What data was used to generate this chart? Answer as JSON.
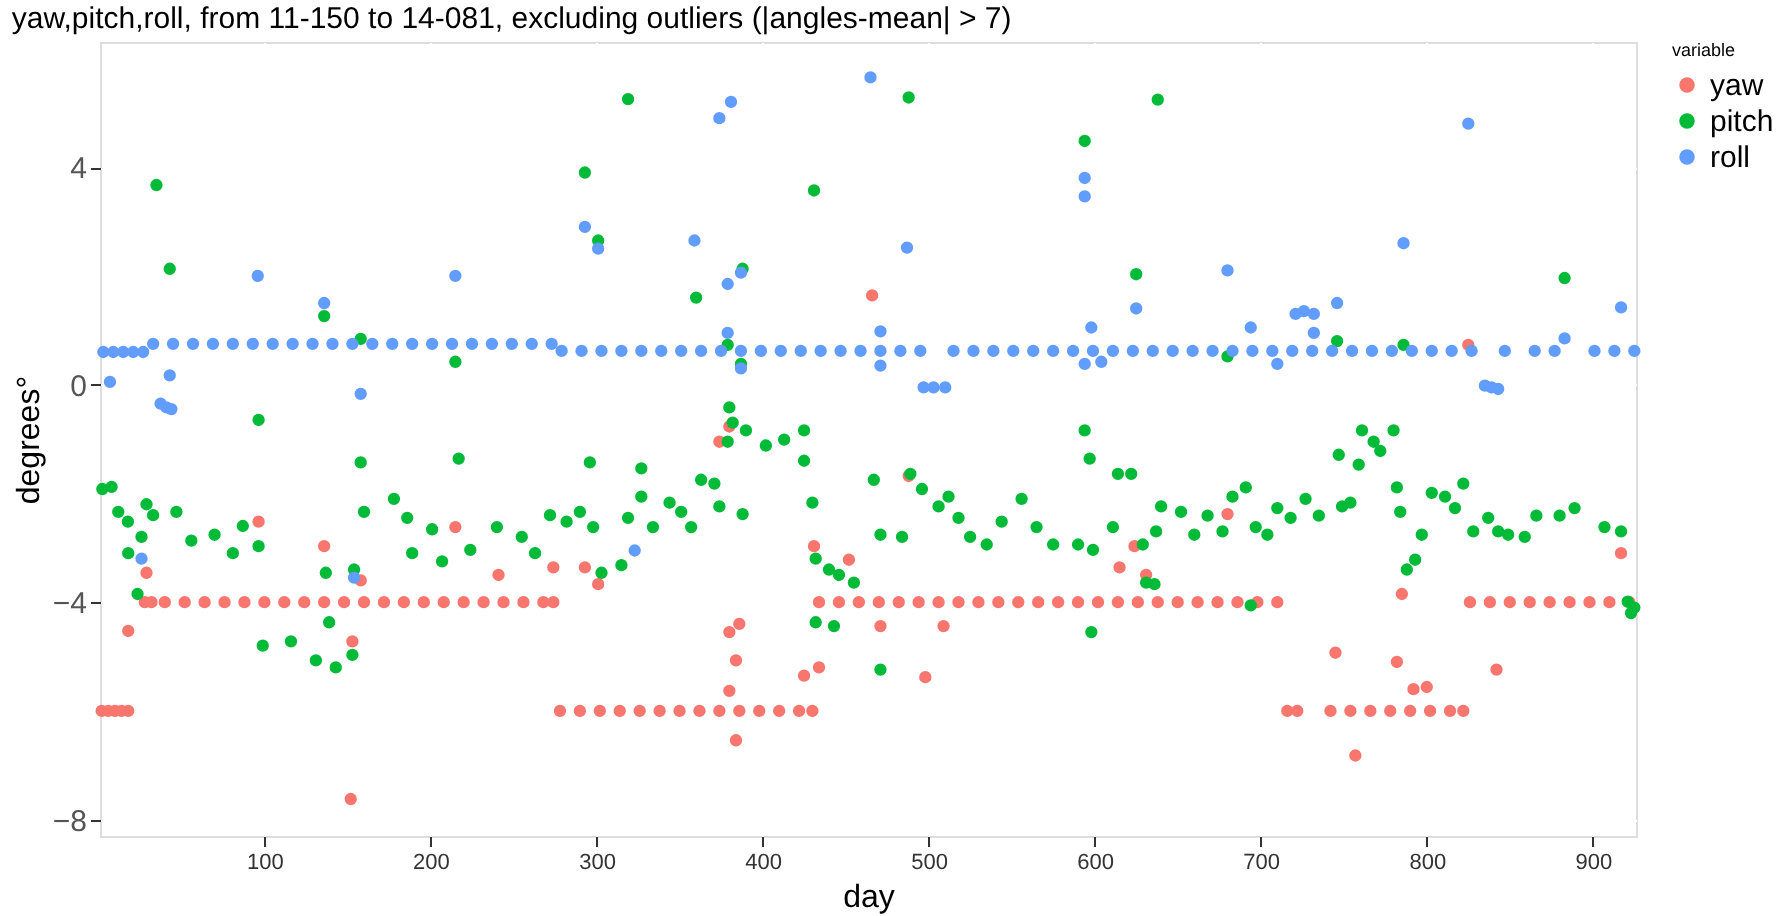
{
  "chart_data": {
    "type": "scatter",
    "title": "yaw,pitch,roll, from 11-150 to 14-081, excluding outliers (|angles-mean| > 7)",
    "xlabel": "day",
    "ylabel": "degrees°",
    "legend_title": "variable",
    "legend": "right",
    "grid": true,
    "marker": "circle",
    "xlim": [
      1,
      926
    ],
    "ylim": [
      -8.3,
      6.3
    ],
    "xticks": [
      100,
      200,
      300,
      400,
      500,
      600,
      700,
      800,
      900
    ],
    "yticks": [
      -8,
      -4,
      0,
      4
    ],
    "series": [
      {
        "name": "yaw",
        "color": "#f8766d",
        "x": [
          2,
          6,
          10,
          14,
          18,
          28,
          32,
          40,
          52,
          64,
          76,
          88,
          100,
          112,
          124,
          136,
          148,
          160,
          172,
          184,
          196,
          208,
          220,
          232,
          244,
          256,
          268,
          274,
          278,
          290,
          302,
          314,
          326,
          338,
          350,
          362,
          374,
          386,
          398,
          410,
          422,
          430,
          434,
          446,
          458,
          470,
          482,
          494,
          506,
          518,
          530,
          542,
          554,
          566,
          578,
          590,
          602,
          614,
          626,
          638,
          650,
          662,
          674,
          686,
          698,
          710,
          716,
          722,
          742,
          754,
          766,
          778,
          790,
          802,
          814,
          822,
          826,
          838,
          850,
          862,
          874,
          886,
          898,
          910,
          922,
          18,
          29,
          96.5,
          136,
          153,
          158,
          152,
          215,
          241,
          274,
          293,
          301,
          380,
          386,
          384,
          380,
          384,
          380,
          374,
          425,
          434,
          431,
          452,
          471,
          466,
          488,
          498,
          509,
          615,
          624,
          631,
          680,
          745,
          757,
          782,
          785,
          792,
          800,
          842,
          917,
          825
        ],
        "values": [
          -6,
          -6,
          -6,
          -6,
          -6,
          -4,
          -4,
          -4,
          -4,
          -4,
          -4,
          -4,
          -4,
          -4,
          -4,
          -4,
          -4,
          -4,
          -4,
          -4,
          -4,
          -4,
          -4,
          -4,
          -4,
          -4,
          -4,
          -4,
          -6,
          -6,
          -6,
          -6,
          -6,
          -6,
          -6,
          -6,
          -6,
          -6,
          -6,
          -6,
          -6,
          -6,
          -4,
          -4,
          -4,
          -4,
          -4,
          -4,
          -4,
          -4,
          -4,
          -4,
          -4,
          -4,
          -4,
          -4,
          -4,
          -4,
          -4,
          -4,
          -4,
          -4,
          -4,
          -4,
          -4,
          -4,
          -6,
          -6,
          -6,
          -6,
          -6,
          -6,
          -6,
          -6,
          -6,
          -6,
          -4,
          -4,
          -4,
          -4,
          -4,
          -4,
          -4,
          -4,
          -4,
          -4.53,
          -3.46,
          -2.52,
          -2.97,
          -4.72,
          -3.6,
          -7.62,
          -2.62,
          -3.5,
          -3.36,
          -3.36,
          -3.67,
          -4.55,
          -4.4,
          -5.07,
          -5.63,
          -6.54,
          -0.77,
          -1.05,
          -5.35,
          -5.2,
          -2.97,
          -3.22,
          -4.44,
          1.64,
          -1.68,
          -5.38,
          -4.44,
          -3.36,
          -2.97,
          -3.5,
          -2.38,
          -4.93,
          -6.82,
          -5.1,
          -3.85,
          -5.6,
          -5.56,
          -5.24,
          -3.1,
          0.73
        ]
      },
      {
        "name": "pitch",
        "color": "#00ba38",
        "x": [
          2.4,
          8,
          12,
          17.8,
          18,
          26,
          29,
          33,
          23.6,
          47,
          56,
          70,
          81,
          87,
          96.5,
          96.5,
          99,
          116,
          131,
          139,
          143,
          153,
          137,
          154,
          158,
          160,
          178,
          186,
          189,
          207,
          201,
          217,
          224,
          240,
          255,
          263,
          272,
          282,
          290,
          296,
          298,
          303,
          315,
          319,
          327,
          327,
          334,
          344,
          351,
          357,
          363,
          371,
          374,
          379,
          382,
          390,
          402,
          413,
          425,
          388,
          425,
          430,
          432,
          440,
          432,
          443,
          446,
          455,
          467,
          471,
          471,
          35,
          43,
          136,
          158,
          215,
          293,
          301,
          319,
          360,
          379,
          380,
          387,
          388,
          431,
          488,
          594,
          625,
          638,
          746,
          786,
          883,
          680,
          594,
          484,
          489,
          496,
          506,
          512,
          518,
          525,
          535,
          544,
          556,
          565,
          575,
          590,
          599,
          611,
          614,
          622,
          629,
          631,
          637,
          640,
          652,
          660,
          668,
          677,
          683,
          691,
          697,
          704,
          710,
          718,
          727,
          735,
          749,
          754,
          747,
          759,
          761,
          768,
          772,
          780,
          782,
          784,
          788,
          793,
          797,
          803,
          811,
          817,
          822,
          828,
          837,
          843,
          849,
          859,
          866,
          880,
          889,
          907,
          917,
          921,
          925,
          923,
          598,
          694,
          597,
          636
        ],
        "values": [
          -1.92,
          -1.88,
          -2.34,
          -2.52,
          -3.1,
          -2.8,
          -2.2,
          -2.4,
          -3.85,
          -2.34,
          -2.87,
          -2.76,
          -3.1,
          -2.6,
          -2.97,
          -0.65,
          -4.8,
          -4.72,
          -5.07,
          -4.37,
          -5.2,
          -4.97,
          -3.46,
          -3.4,
          -1.43,
          -2.34,
          -2.1,
          -2.45,
          -3.1,
          -3.25,
          -2.66,
          -1.36,
          -3.04,
          -2.62,
          -2.8,
          -3.1,
          -2.4,
          -2.52,
          -2.34,
          -1.43,
          -2.62,
          -3.46,
          -3.32,
          -2.45,
          -1.54,
          -2.06,
          -2.62,
          -2.17,
          -2.34,
          -2.62,
          -1.75,
          -1.82,
          -2.24,
          -1.05,
          -0.7,
          -0.84,
          -1.12,
          -1.01,
          -0.84,
          -2.38,
          -1.4,
          -2.17,
          -3.2,
          -3.4,
          -4.37,
          -4.44,
          -3.5,
          -3.64,
          -1.75,
          -2.76,
          -5.24,
          3.67,
          2.13,
          1.26,
          0.84,
          0.42,
          3.9,
          2.65,
          5.25,
          1.6,
          0.73,
          -0.42,
          0.38,
          2.13,
          3.57,
          5.28,
          4.48,
          2.03,
          5.24,
          0.8,
          0.73,
          1.96,
          0.52,
          -0.84,
          -2.8,
          -1.64,
          -1.92,
          -2.24,
          -2.06,
          -2.45,
          -2.8,
          -2.94,
          -2.52,
          -2.1,
          -2.62,
          -2.94,
          -2.94,
          -3.04,
          -2.62,
          -1.64,
          -1.64,
          -2.94,
          -3.64,
          -2.7,
          -2.24,
          -2.34,
          -2.76,
          -2.41,
          -2.7,
          -2.06,
          -1.89,
          -2.62,
          -2.76,
          -2.27,
          -2.45,
          -2.1,
          -2.41,
          -2.24,
          -2.17,
          -1.29,
          -1.47,
          -0.84,
          -1.05,
          -1.22,
          -0.84,
          -1.89,
          -2.34,
          -3.4,
          -3.22,
          -2.76,
          -1.99,
          -2.06,
          -2.27,
          -1.82,
          -2.7,
          -2.45,
          -2.7,
          -2.76,
          -2.8,
          -2.41,
          -2.41,
          -2.27,
          -2.62,
          -2.7,
          -3.99,
          -4.1,
          -4.2,
          -4.55,
          -4.06,
          -1.36,
          -3.67
        ]
      },
      {
        "name": "roll",
        "color": "#619cff",
        "x": [
          3,
          9,
          15,
          21,
          27,
          33,
          45,
          57,
          69,
          81,
          93,
          105,
          117,
          129,
          141,
          153,
          165,
          177,
          189,
          201,
          213,
          225,
          237,
          249,
          261,
          273,
          279,
          291,
          303,
          315,
          327,
          339,
          351,
          363,
          375,
          387,
          399,
          411,
          423,
          435,
          447,
          459,
          471,
          483,
          495,
          515,
          527,
          539,
          551,
          563,
          575,
          587,
          599,
          611,
          623,
          635,
          647,
          659,
          671,
          683,
          695,
          707,
          719,
          731,
          743,
          755,
          767,
          779,
          791,
          803,
          815,
          827,
          847,
          865,
          877,
          901,
          913,
          925,
          7,
          37.5,
          41,
          44,
          43,
          96,
          136,
          158,
          215,
          293,
          301,
          359,
          374,
          381,
          379,
          387,
          379,
          387,
          465,
          487,
          471,
          471,
          497,
          503,
          510,
          594,
          594,
          598,
          594,
          604,
          625,
          680,
          694,
          710,
          721,
          726,
          732,
          732,
          746,
          786,
          825,
          835,
          839,
          843,
          883,
          917,
          26,
          154,
          323
        ],
        "values": [
          0.6,
          0.6,
          0.6,
          0.6,
          0.6,
          0.75,
          0.75,
          0.75,
          0.75,
          0.75,
          0.75,
          0.75,
          0.75,
          0.75,
          0.75,
          0.75,
          0.75,
          0.75,
          0.75,
          0.75,
          0.75,
          0.75,
          0.75,
          0.75,
          0.75,
          0.75,
          0.62,
          0.62,
          0.62,
          0.62,
          0.62,
          0.62,
          0.62,
          0.62,
          0.62,
          0.62,
          0.62,
          0.62,
          0.62,
          0.62,
          0.62,
          0.62,
          0.62,
          0.62,
          0.62,
          0.62,
          0.62,
          0.62,
          0.62,
          0.62,
          0.62,
          0.62,
          0.62,
          0.62,
          0.62,
          0.62,
          0.62,
          0.62,
          0.62,
          0.62,
          0.62,
          0.62,
          0.62,
          0.62,
          0.62,
          0.62,
          0.62,
          0.62,
          0.62,
          0.62,
          0.62,
          0.62,
          0.62,
          0.62,
          0.62,
          0.62,
          0.62,
          0.62,
          0.05,
          -0.35,
          -0.42,
          -0.45,
          0.17,
          2.0,
          1.5,
          -0.17,
          2.0,
          2.9,
          2.5,
          2.65,
          4.9,
          5.2,
          1.85,
          2.06,
          0.95,
          0.3,
          5.65,
          2.52,
          0.98,
          0.35,
          -0.05,
          -0.05,
          -0.05,
          3.8,
          3.46,
          1.05,
          0.38,
          0.42,
          1.4,
          2.1,
          1.05,
          0.38,
          1.3,
          1.35,
          1.3,
          0.95,
          1.5,
          2.6,
          4.8,
          -0.02,
          -0.05,
          -0.08,
          0.85,
          1.42,
          -3.2,
          -3.55,
          -3.05
        ]
      }
    ]
  }
}
